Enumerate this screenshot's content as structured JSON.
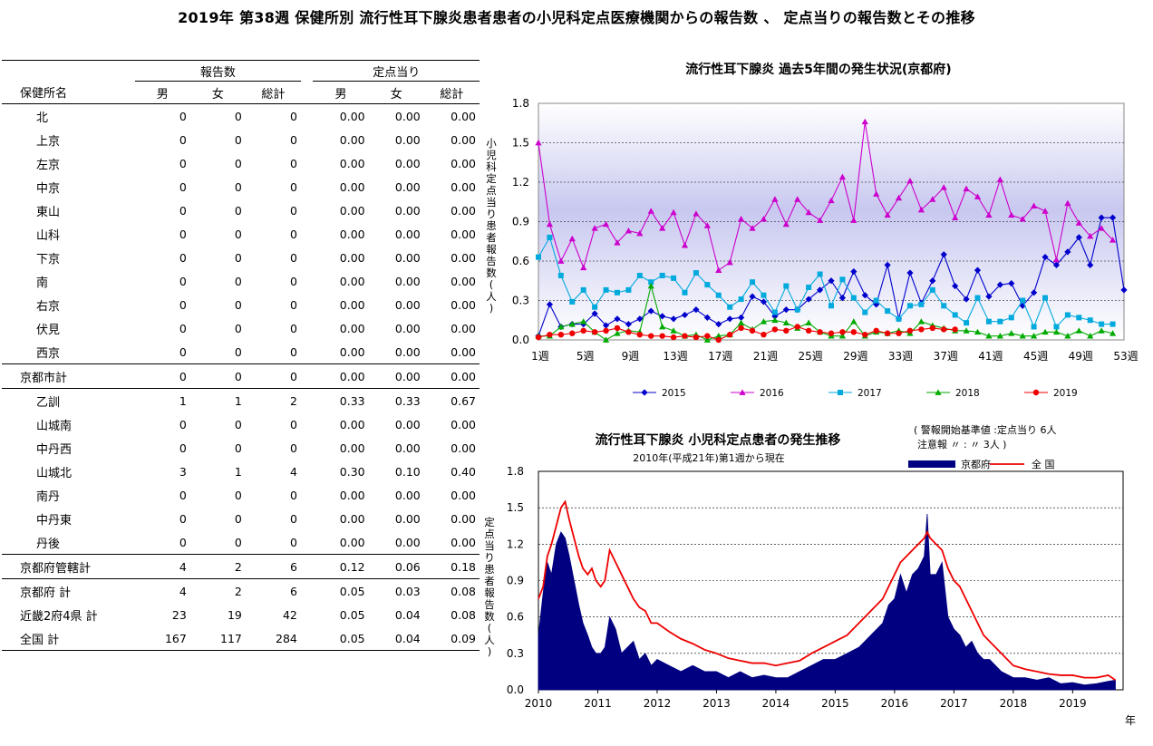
{
  "title": "2019年 第38週 保健所別 流行性耳下腺炎患者患者の小児科定点医療機関からの報告数 、 定点当りの報告数とその推移",
  "table": {
    "group_headers": [
      "報告数",
      "定点当り"
    ],
    "col_name": "保健所名",
    "sub_headers": [
      "男",
      "女",
      "総計",
      "男",
      "女",
      "総計"
    ],
    "rows": [
      {
        "name": "北",
        "vals": [
          "0",
          "0",
          "0",
          "0.00",
          "0.00",
          "0.00"
        ]
      },
      {
        "name": "上京",
        "vals": [
          "0",
          "0",
          "0",
          "0.00",
          "0.00",
          "0.00"
        ]
      },
      {
        "name": "左京",
        "vals": [
          "0",
          "0",
          "0",
          "0.00",
          "0.00",
          "0.00"
        ]
      },
      {
        "name": "中京",
        "vals": [
          "0",
          "0",
          "0",
          "0.00",
          "0.00",
          "0.00"
        ]
      },
      {
        "name": "東山",
        "vals": [
          "0",
          "0",
          "0",
          "0.00",
          "0.00",
          "0.00"
        ]
      },
      {
        "name": "山科",
        "vals": [
          "0",
          "0",
          "0",
          "0.00",
          "0.00",
          "0.00"
        ]
      },
      {
        "name": "下京",
        "vals": [
          "0",
          "0",
          "0",
          "0.00",
          "0.00",
          "0.00"
        ]
      },
      {
        "name": "南",
        "vals": [
          "0",
          "0",
          "0",
          "0.00",
          "0.00",
          "0.00"
        ]
      },
      {
        "name": "右京",
        "vals": [
          "0",
          "0",
          "0",
          "0.00",
          "0.00",
          "0.00"
        ]
      },
      {
        "name": "伏見",
        "vals": [
          "0",
          "0",
          "0",
          "0.00",
          "0.00",
          "0.00"
        ]
      },
      {
        "name": "西京",
        "vals": [
          "0",
          "0",
          "0",
          "0.00",
          "0.00",
          "0.00"
        ]
      },
      {
        "name": "京都市計",
        "vals": [
          "0",
          "0",
          "0",
          "0.00",
          "0.00",
          "0.00"
        ]
      },
      {
        "name": "乙訓",
        "vals": [
          "1",
          "1",
          "2",
          "0.33",
          "0.33",
          "0.67"
        ]
      },
      {
        "name": "山城南",
        "vals": [
          "0",
          "0",
          "0",
          "0.00",
          "0.00",
          "0.00"
        ]
      },
      {
        "name": "中丹西",
        "vals": [
          "0",
          "0",
          "0",
          "0.00",
          "0.00",
          "0.00"
        ]
      },
      {
        "name": "山城北",
        "vals": [
          "3",
          "1",
          "4",
          "0.30",
          "0.10",
          "0.40"
        ]
      },
      {
        "name": "南丹",
        "vals": [
          "0",
          "0",
          "0",
          "0.00",
          "0.00",
          "0.00"
        ]
      },
      {
        "name": "中丹東",
        "vals": [
          "0",
          "0",
          "0",
          "0.00",
          "0.00",
          "0.00"
        ]
      },
      {
        "name": "丹後",
        "vals": [
          "0",
          "0",
          "0",
          "0.00",
          "0.00",
          "0.00"
        ]
      },
      {
        "name": "京都府管轄計",
        "vals": [
          "4",
          "2",
          "6",
          "0.12",
          "0.06",
          "0.18"
        ]
      },
      {
        "name": "京都府 計",
        "vals": [
          "4",
          "2",
          "6",
          "0.05",
          "0.03",
          "0.08"
        ]
      },
      {
        "name": "近畿2府4県 計",
        "vals": [
          "23",
          "19",
          "42",
          "0.05",
          "0.04",
          "0.08"
        ]
      },
      {
        "name": "全国 計",
        "vals": [
          "167",
          "117",
          "284",
          "0.05",
          "0.04",
          "0.09"
        ]
      }
    ]
  },
  "chart_data": [
    {
      "type": "line",
      "title": "流行性耳下腺炎 過去5年間の発生状況(京都府)",
      "ylabel": "小児科定点当り患者報告数(人)",
      "ylim": [
        0,
        1.8
      ],
      "yticks": [
        "0.0",
        "0.3",
        "0.6",
        "0.9",
        "1.2",
        "1.5",
        "1.8"
      ],
      "xlim": [
        1,
        53
      ],
      "xtick_labels": [
        "1週",
        "5週",
        "9週",
        "13週",
        "17週",
        "21週",
        "25週",
        "29週",
        "33週",
        "37週",
        "41週",
        "45週",
        "49週",
        "53週"
      ],
      "xtick_weeks": [
        1,
        5,
        9,
        13,
        17,
        21,
        25,
        29,
        33,
        37,
        41,
        45,
        49,
        53
      ],
      "legend_position": "bottom",
      "series": [
        {
          "name": "2015",
          "color": "#0000CC",
          "marker": "diamond",
          "start_week": 1,
          "values": [
            0.03,
            0.27,
            0.1,
            0.12,
            0.12,
            0.2,
            0.11,
            0.16,
            0.12,
            0.16,
            0.22,
            0.18,
            0.16,
            0.19,
            0.23,
            0.17,
            0.12,
            0.16,
            0.17,
            0.33,
            0.29,
            0.18,
            0.23,
            0.23,
            0.31,
            0.38,
            0.45,
            0.32,
            0.52,
            0.34,
            0.27,
            0.57,
            0.16,
            0.51,
            0.28,
            0.45,
            0.65,
            0.41,
            0.31,
            0.53,
            0.33,
            0.42,
            0.43,
            0.26,
            0.36,
            0.63,
            0.57,
            0.67,
            0.78,
            0.57,
            0.93,
            0.93,
            0.38
          ]
        },
        {
          "name": "2016",
          "color": "#CC00CC",
          "marker": "triangle",
          "start_week": 1,
          "values": [
            1.5,
            0.88,
            0.6,
            0.77,
            0.55,
            0.85,
            0.88,
            0.74,
            0.83,
            0.81,
            0.98,
            0.85,
            0.97,
            0.72,
            0.96,
            0.87,
            0.53,
            0.59,
            0.92,
            0.85,
            0.92,
            1.07,
            0.88,
            1.07,
            0.97,
            0.91,
            1.06,
            1.24,
            0.91,
            1.66,
            1.11,
            0.95,
            1.08,
            1.21,
            0.99,
            1.07,
            1.16,
            0.93,
            1.15,
            1.09,
            0.95,
            1.22,
            0.95,
            0.92,
            1.02,
            0.98,
            0.61,
            1.04,
            0.89,
            0.79,
            0.85,
            0.76
          ]
        },
        {
          "name": "2017",
          "color": "#00AADD",
          "marker": "square",
          "start_week": 1,
          "values": [
            0.63,
            0.78,
            0.49,
            0.29,
            0.38,
            0.25,
            0.38,
            0.36,
            0.38,
            0.49,
            0.44,
            0.49,
            0.47,
            0.36,
            0.51,
            0.42,
            0.34,
            0.25,
            0.31,
            0.44,
            0.34,
            0.21,
            0.41,
            0.23,
            0.4,
            0.5,
            0.26,
            0.46,
            0.32,
            0.21,
            0.3,
            0.22,
            0.16,
            0.26,
            0.27,
            0.38,
            0.26,
            0.19,
            0.13,
            0.32,
            0.14,
            0.14,
            0.17,
            0.3,
            0.1,
            0.32,
            0.1,
            0.19,
            0.17,
            0.15,
            0.12,
            0.12
          ]
        },
        {
          "name": "2018",
          "color": "#00AA00",
          "marker": "triangle",
          "start_week": 1,
          "values": [
            0.03,
            0.03,
            0.1,
            0.12,
            0.14,
            0.06,
            0.0,
            0.05,
            0.07,
            0.06,
            0.41,
            0.1,
            0.07,
            0.03,
            0.04,
            0.0,
            0.03,
            0.04,
            0.13,
            0.08,
            0.14,
            0.15,
            0.13,
            0.09,
            0.13,
            0.06,
            0.03,
            0.03,
            0.14,
            0.03,
            0.06,
            0.05,
            0.07,
            0.05,
            0.14,
            0.11,
            0.09,
            0.07,
            0.07,
            0.06,
            0.03,
            0.03,
            0.05,
            0.03,
            0.03,
            0.06,
            0.06,
            0.03,
            0.07,
            0.03,
            0.07,
            0.05
          ]
        },
        {
          "name": "2019",
          "color": "#EE0000",
          "marker": "circle",
          "start_week": 1,
          "values": [
            0.02,
            0.04,
            0.04,
            0.05,
            0.07,
            0.06,
            0.07,
            0.09,
            0.06,
            0.04,
            0.03,
            0.03,
            0.02,
            0.03,
            0.02,
            0.03,
            0.0,
            0.04,
            0.09,
            0.07,
            0.04,
            0.08,
            0.07,
            0.1,
            0.07,
            0.06,
            0.05,
            0.06,
            0.06,
            0.04,
            0.07,
            0.05,
            0.05,
            0.07,
            0.08,
            0.09,
            0.08,
            0.08
          ]
        }
      ]
    },
    {
      "type": "area",
      "title": "流行性耳下腺炎 小児科定点患者の発生推移",
      "subtitle": "2010年(平成21年)第1週から現在",
      "ylabel": "定点当り患者報告数(人)",
      "xlabel": "年",
      "ylim": [
        0,
        1.8
      ],
      "yticks": [
        "0.0",
        "0.3",
        "0.6",
        "0.9",
        "1.2",
        "1.5",
        "1.8"
      ],
      "xlim": [
        2010,
        2019.85
      ],
      "xtick_labels": [
        "2010",
        "2011",
        "2012",
        "2013",
        "2014",
        "2015",
        "2016",
        "2017",
        "2018",
        "2019"
      ],
      "threshold_note": [
        "( 警報開始基準値 :定点当り 6人",
        "注意報 〃 : 〃 3人 )"
      ],
      "legend_position": "top-right",
      "series": [
        {
          "name": "京都府",
          "color": "#000080",
          "style": "area",
          "x": [
            2010.0,
            2010.08,
            2010.15,
            2010.22,
            2010.3,
            2010.38,
            2010.45,
            2010.52,
            2010.6,
            2010.68,
            2010.75,
            2010.83,
            2010.9,
            2010.97,
            2011.05,
            2011.12,
            2011.2,
            2011.3,
            2011.4,
            2011.5,
            2011.6,
            2011.7,
            2011.8,
            2011.9,
            2012.0,
            2012.2,
            2012.4,
            2012.6,
            2012.8,
            2013.0,
            2013.2,
            2013.4,
            2013.6,
            2013.8,
            2014.0,
            2014.2,
            2014.4,
            2014.6,
            2014.8,
            2015.0,
            2015.2,
            2015.4,
            2015.6,
            2015.8,
            2015.9,
            2016.0,
            2016.1,
            2016.2,
            2016.3,
            2016.4,
            2016.5,
            2016.55,
            2016.6,
            2016.7,
            2016.8,
            2016.9,
            2017.0,
            2017.1,
            2017.2,
            2017.3,
            2017.4,
            2017.5,
            2017.6,
            2017.8,
            2018.0,
            2018.2,
            2018.4,
            2018.6,
            2018.8,
            2019.0,
            2019.2,
            2019.4,
            2019.6,
            2019.72
          ],
          "values": [
            0.45,
            0.8,
            1.05,
            0.95,
            1.2,
            1.3,
            1.25,
            1.1,
            0.9,
            0.7,
            0.55,
            0.45,
            0.35,
            0.3,
            0.3,
            0.35,
            0.6,
            0.5,
            0.3,
            0.35,
            0.4,
            0.25,
            0.3,
            0.2,
            0.25,
            0.2,
            0.15,
            0.2,
            0.15,
            0.15,
            0.1,
            0.15,
            0.1,
            0.12,
            0.1,
            0.1,
            0.15,
            0.2,
            0.25,
            0.25,
            0.3,
            0.35,
            0.45,
            0.55,
            0.7,
            0.75,
            0.95,
            0.8,
            0.95,
            1.0,
            1.1,
            1.45,
            0.95,
            0.95,
            1.05,
            0.6,
            0.5,
            0.45,
            0.35,
            0.4,
            0.3,
            0.25,
            0.25,
            0.15,
            0.1,
            0.1,
            0.08,
            0.1,
            0.05,
            0.06,
            0.04,
            0.05,
            0.07,
            0.08
          ]
        },
        {
          "name": "全 国",
          "color": "#EE0000",
          "style": "line",
          "x": [
            2010.0,
            2010.08,
            2010.15,
            2010.22,
            2010.3,
            2010.38,
            2010.45,
            2010.52,
            2010.6,
            2010.68,
            2010.75,
            2010.83,
            2010.9,
            2010.97,
            2011.05,
            2011.12,
            2011.2,
            2011.3,
            2011.4,
            2011.5,
            2011.6,
            2011.7,
            2011.8,
            2011.9,
            2012.0,
            2012.2,
            2012.4,
            2012.6,
            2012.8,
            2013.0,
            2013.2,
            2013.4,
            2013.6,
            2013.8,
            2014.0,
            2014.2,
            2014.4,
            2014.6,
            2014.8,
            2015.0,
            2015.2,
            2015.4,
            2015.6,
            2015.8,
            2015.9,
            2016.0,
            2016.1,
            2016.2,
            2016.3,
            2016.4,
            2016.5,
            2016.55,
            2016.6,
            2016.7,
            2016.8,
            2016.9,
            2017.0,
            2017.1,
            2017.2,
            2017.3,
            2017.4,
            2017.5,
            2017.6,
            2017.8,
            2018.0,
            2018.2,
            2018.4,
            2018.6,
            2018.8,
            2019.0,
            2019.2,
            2019.4,
            2019.6,
            2019.72
          ],
          "values": [
            0.75,
            0.85,
            1.1,
            1.2,
            1.35,
            1.5,
            1.55,
            1.4,
            1.25,
            1.1,
            1.0,
            0.95,
            1.0,
            0.9,
            0.85,
            0.9,
            1.15,
            1.05,
            0.95,
            0.85,
            0.75,
            0.68,
            0.65,
            0.55,
            0.55,
            0.48,
            0.42,
            0.38,
            0.33,
            0.3,
            0.26,
            0.24,
            0.22,
            0.22,
            0.2,
            0.22,
            0.24,
            0.3,
            0.35,
            0.4,
            0.45,
            0.55,
            0.65,
            0.75,
            0.85,
            0.95,
            1.05,
            1.1,
            1.15,
            1.2,
            1.25,
            1.3,
            1.25,
            1.2,
            1.15,
            1.0,
            0.9,
            0.85,
            0.75,
            0.65,
            0.55,
            0.45,
            0.4,
            0.3,
            0.2,
            0.17,
            0.15,
            0.13,
            0.12,
            0.12,
            0.1,
            0.1,
            0.12,
            0.08
          ]
        }
      ]
    }
  ]
}
